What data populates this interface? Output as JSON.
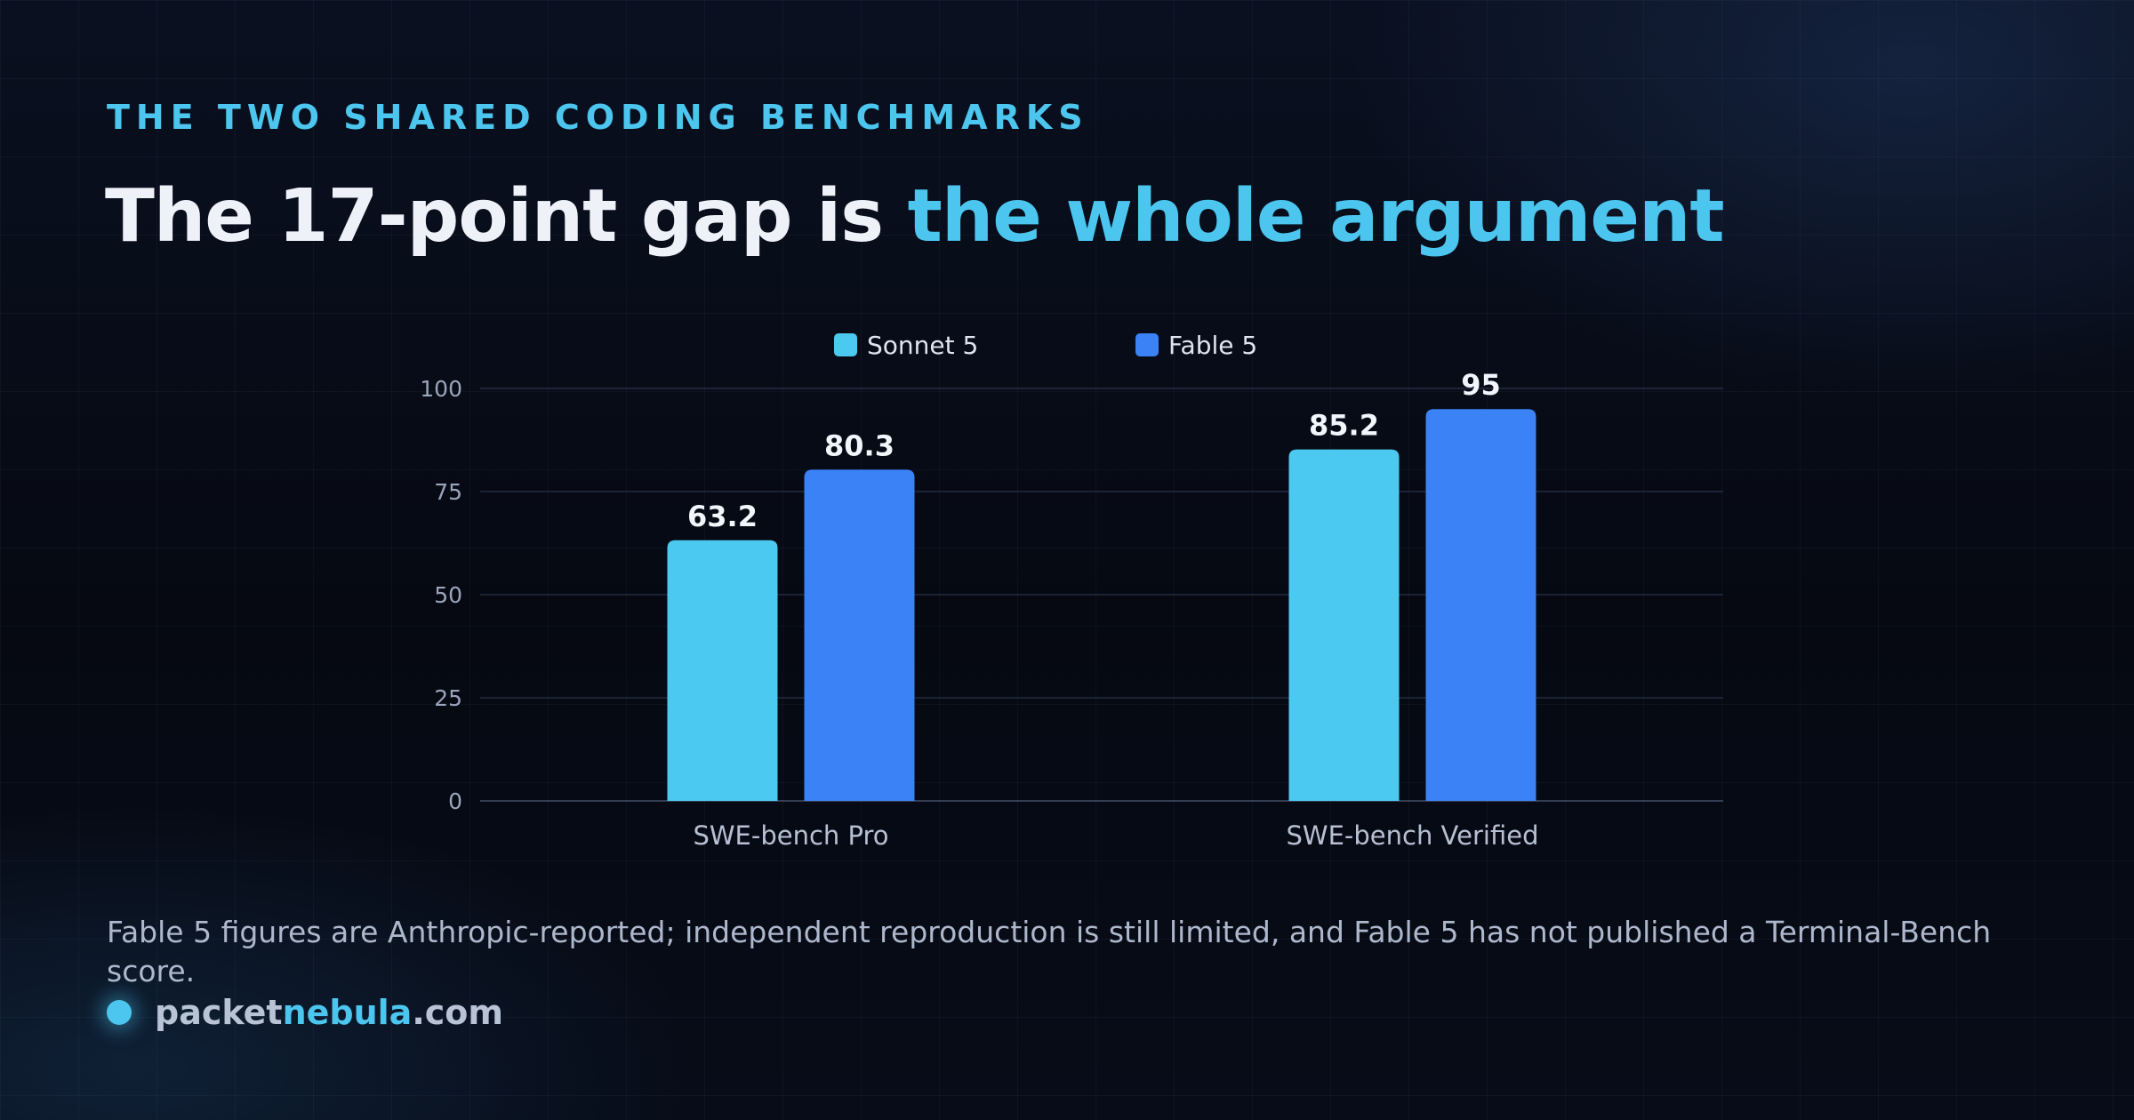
{
  "eyebrow": "THE TWO SHARED CODING BENCHMARKS",
  "headline": {
    "lead": "The 17-point gap is ",
    "accent": "the whole argument"
  },
  "colors": {
    "accent": "#4cc6ee",
    "sonnet": "#4cc9f0",
    "fable": "#3b82f6"
  },
  "chart_data": {
    "type": "bar",
    "categories": [
      "SWE-bench Pro",
      "SWE-bench Verified"
    ],
    "series": [
      {
        "name": "Sonnet 5",
        "color": "#4cc9f0",
        "values": [
          63.2,
          85.2
        ]
      },
      {
        "name": "Fable 5",
        "color": "#3b82f6",
        "values": [
          80.3,
          95
        ]
      }
    ],
    "ylim": [
      0,
      100
    ],
    "yticks": [
      0,
      25,
      50,
      75,
      100
    ],
    "grid": true,
    "legend": "top-center",
    "data_labels": true
  },
  "footnote": "Fable 5 figures are Anthropic-reported; independent reproduction is still limited, and Fable 5 has not published a Terminal-Bench score.",
  "brand": {
    "part1": "packet",
    "part2": "nebula",
    "part3": ".com"
  }
}
